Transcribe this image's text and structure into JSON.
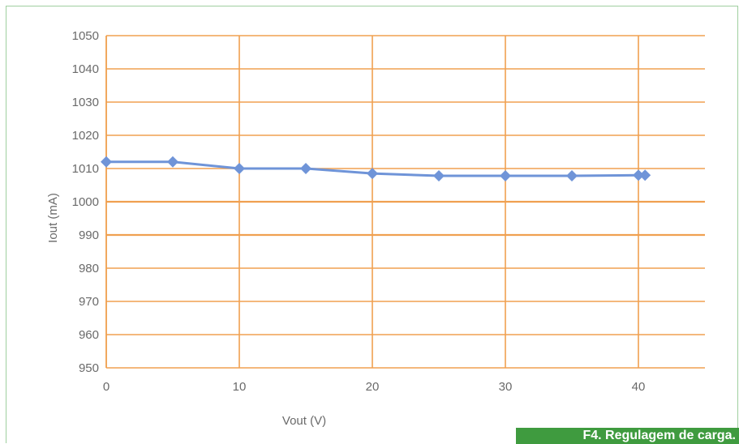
{
  "caption": "F4. Regulagem de carga.",
  "colors": {
    "grid": "#f0a050",
    "series": "#6f94d8",
    "tick_text": "#6a6a6a",
    "caption_bg": "#3f9b3f",
    "frame": "#9fcf9f"
  },
  "chart_data": {
    "type": "line",
    "xlabel": "Vout (V)",
    "ylabel": "Iout (mA)",
    "xlim": [
      0,
      45
    ],
    "ylim": [
      950,
      1050
    ],
    "xticks": [
      0,
      10,
      20,
      30,
      40
    ],
    "yticks": [
      950,
      960,
      970,
      980,
      990,
      1000,
      1010,
      1020,
      1030,
      1040,
      1050
    ],
    "grid": true,
    "marker": "diamond",
    "series": [
      {
        "x": [
          0,
          5,
          10,
          15,
          20,
          25,
          30,
          35,
          40,
          40.5
        ],
        "y": [
          1012,
          1012,
          1010,
          1010,
          1008.5,
          1007.8,
          1007.8,
          1007.8,
          1008,
          1008
        ]
      }
    ]
  }
}
